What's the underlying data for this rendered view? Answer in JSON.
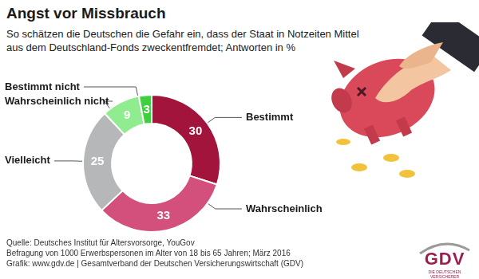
{
  "chart_data": {
    "type": "doughnut",
    "title": "Angst vor Missbrauch",
    "subtitle": "So schätzen die Deutschen die Gefahr ein, dass der Staat in Notzeiten Mittel aus dem Deutschland-Fonds zweckentfremdet; Antworten in %",
    "categories": [
      "Bestimmt",
      "Wahrscheinlich",
      "Vielleicht",
      "Wahrscheinlich nicht",
      "Bestimmt nicht"
    ],
    "values": [
      30,
      33,
      25,
      9,
      3
    ],
    "colors": [
      "#a3143c",
      "#d2507b",
      "#b5b7b8",
      "#8fec8f",
      "#3fcf3f"
    ],
    "data_labels": true,
    "source": [
      "Quelle: Deutsches Institut für Altersvorsorge, YouGov",
      "Befragung von 1000 Erwerbspersonen im Alter von 18 bis 65 Jahren; März 2016",
      "Grafik: www.gdv.de | Gesamtverband der Deutschen Versicherungswirtschaft (GDV)"
    ],
    "logo": {
      "text": "GDV",
      "subtitle": "DIE DEUTSCHEN VERSICHERER"
    }
  }
}
